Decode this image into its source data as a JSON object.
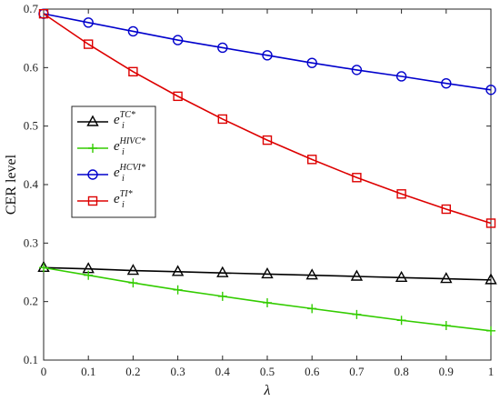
{
  "chart_data": {
    "type": "line",
    "xlabel": "λ",
    "ylabel": "CER level",
    "xlim": [
      0,
      1
    ],
    "ylim": [
      0.1,
      0.7
    ],
    "x": [
      0,
      0.1,
      0.2,
      0.3,
      0.4,
      0.5,
      0.6,
      0.7,
      0.8,
      0.9,
      1.0
    ],
    "xticks": [
      "0",
      "0.1",
      "0.2",
      "0.3",
      "0.4",
      "0.5",
      "0.6",
      "0.7",
      "0.8",
      "0.9",
      "1"
    ],
    "yticks": [
      "0.1",
      "0.2",
      "0.3",
      "0.4",
      "0.5",
      "0.6",
      "0.7"
    ],
    "yticks_values": [
      0.1,
      0.2,
      0.3,
      0.4,
      0.5,
      0.6,
      0.7
    ],
    "grid": false,
    "legend_position": "left-middle",
    "series": [
      {
        "name": "e_i^{TC*}",
        "legend_base": "e",
        "legend_sup": "TC*",
        "legend_sub": "i",
        "color": "#000000",
        "marker": "triangle",
        "values": [
          0.258,
          0.256,
          0.253,
          0.251,
          0.249,
          0.247,
          0.245,
          0.243,
          0.241,
          0.239,
          0.237
        ]
      },
      {
        "name": "e_i^{HIVC*}",
        "legend_base": "e",
        "legend_sup": "HIVC*",
        "legend_sub": "i",
        "color": "#33cc00",
        "marker": "plus",
        "values": [
          0.258,
          0.245,
          0.232,
          0.22,
          0.209,
          0.198,
          0.188,
          0.178,
          0.168,
          0.159,
          0.15
        ]
      },
      {
        "name": "e_i^{HCVI*}",
        "legend_base": "e",
        "legend_sup": "HCVI*",
        "legend_sub": "i",
        "color": "#0000cc",
        "marker": "circle",
        "values": [
          0.692,
          0.677,
          0.662,
          0.647,
          0.634,
          0.621,
          0.608,
          0.596,
          0.585,
          0.573,
          0.562
        ]
      },
      {
        "name": "e_i^{TI*}",
        "legend_base": "e",
        "legend_sup": "TI*",
        "legend_sub": "i",
        "color": "#dd0000",
        "marker": "square",
        "values": [
          0.692,
          0.64,
          0.593,
          0.551,
          0.512,
          0.476,
          0.443,
          0.412,
          0.384,
          0.358,
          0.334
        ]
      }
    ]
  }
}
